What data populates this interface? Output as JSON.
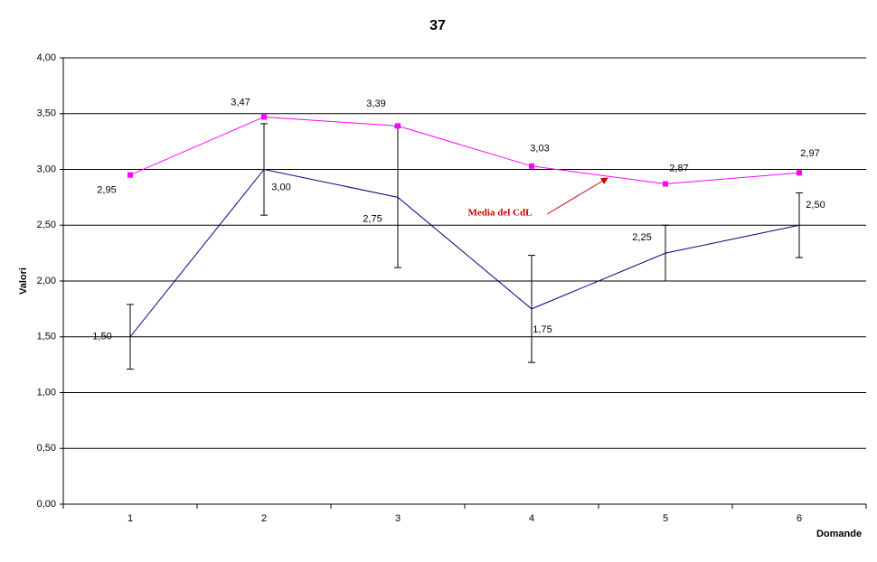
{
  "chart_data": {
    "type": "line",
    "title": "37",
    "y_label": "Valori",
    "x_label": "Domande",
    "annotation": "Media del CdL",
    "categories": [
      "1",
      "2",
      "3",
      "4",
      "5",
      "6"
    ],
    "series": [
      {
        "color": "#000080",
        "marker": "none",
        "values": [
          1.5,
          3.0,
          2.75,
          1.75,
          2.25,
          2.5
        ],
        "value_labels": [
          "1,50",
          "3,00",
          "2,75",
          "1,75",
          "2,25",
          "2,50"
        ],
        "errors": [
          0.29,
          0.41,
          0.63,
          0.48,
          0.25,
          0.29
        ]
      },
      {
        "color": "#ff00ff",
        "marker": "square",
        "values": [
          2.95,
          3.47,
          3.39,
          3.03,
          2.87,
          2.97
        ],
        "value_labels": [
          "2,95",
          "3,47",
          "3,39",
          "3,03",
          "2,87",
          "2,97"
        ]
      }
    ],
    "ylim": [
      0,
      4
    ],
    "yticks": [
      {
        "value": 0,
        "label": "0,00"
      },
      {
        "value": 0.5,
        "label": "0,50"
      },
      {
        "value": 1,
        "label": "1,00"
      },
      {
        "value": 1.5,
        "label": "1,50"
      },
      {
        "value": 2,
        "label": "2,00"
      },
      {
        "value": 2.5,
        "label": "2,50"
      },
      {
        "value": 3,
        "label": "3,00"
      },
      {
        "value": 3.5,
        "label": "3,50"
      },
      {
        "value": 4,
        "label": "4,00"
      }
    ],
    "grid": true
  }
}
